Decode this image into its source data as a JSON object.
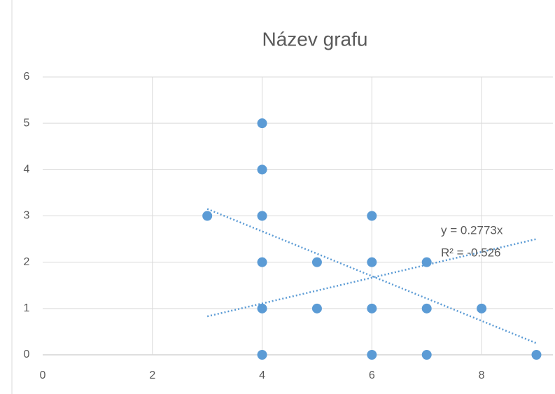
{
  "chart_data": {
    "type": "scatter",
    "title": "Název grafu",
    "x": [
      3,
      4,
      4,
      4,
      4,
      4,
      4,
      5,
      5,
      6,
      6,
      6,
      6,
      7,
      7,
      7,
      8,
      9
    ],
    "values": [
      3,
      5,
      4,
      3,
      2,
      1,
      0,
      2,
      1,
      3,
      2,
      1,
      0,
      2,
      1,
      0,
      1,
      0
    ],
    "color": "#5b9bd5",
    "xlim": [
      0,
      9.3
    ],
    "xticks": [
      0,
      2,
      4,
      6,
      8
    ],
    "ylim": [
      0,
      6
    ],
    "yticks": [
      0,
      1,
      2,
      3,
      4,
      5,
      6
    ],
    "grid": true,
    "trendlines": [
      {
        "x": [
          3,
          9
        ],
        "y": [
          0.83,
          2.5
        ]
      },
      {
        "x": [
          3,
          9
        ],
        "y": [
          3.15,
          0.25
        ]
      }
    ],
    "annotations": [
      "y = 0.2773x",
      "R² = -0.526"
    ]
  }
}
